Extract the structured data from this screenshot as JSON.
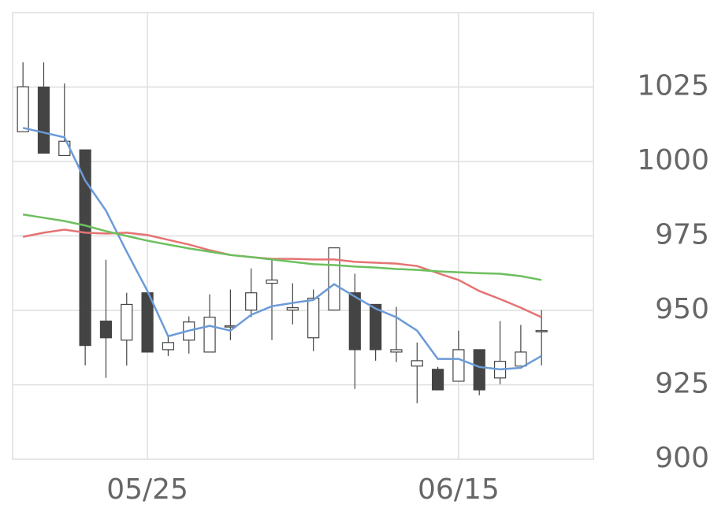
{
  "chart_data": {
    "type": "candlestick",
    "categories": [
      null,
      null,
      null,
      null,
      null,
      null,
      "05/25",
      null,
      null,
      null,
      null,
      null,
      null,
      null,
      null,
      null,
      null,
      null,
      null,
      null,
      null,
      "06/15",
      null,
      null,
      null,
      null
    ],
    "open": [
      1010.0,
      1025.0,
      1002.0,
      1003.9,
      946.4,
      940.0,
      955.9,
      936.8,
      940.0,
      936.0,
      944.5,
      950.1,
      959.1,
      950.1,
      940.8,
      950.1,
      955.9,
      952.0,
      936.0,
      931.3,
      930.2,
      926.2,
      936.8,
      927.3,
      931.3,
      943.2
    ],
    "high": [
      1033.3,
      1033.3,
      1026.2,
      1003.9,
      967.0,
      955.9,
      955.9,
      941.6,
      948.0,
      955.4,
      957.0,
      964.1,
      967.0,
      959.1,
      957.0,
      971.0,
      962.3,
      952.0,
      951.2,
      939.2,
      931.0,
      943.2,
      936.8,
      946.4,
      945.1,
      950.1
    ],
    "low": [
      1010.0,
      1002.8,
      1002.0,
      931.5,
      927.3,
      931.5,
      936.0,
      934.7,
      935.5,
      936.0,
      940.0,
      947.7,
      940.0,
      945.3,
      936.3,
      950.1,
      923.6,
      933.1,
      932.6,
      918.8,
      923.3,
      926.2,
      921.5,
      925.2,
      931.3,
      931.5
    ],
    "close": [
      1025.1,
      1002.8,
      1006.8,
      938.2,
      940.8,
      952.0,
      936.0,
      939.2,
      946.1,
      947.7,
      944.8,
      955.9,
      960.2,
      950.9,
      954.1,
      971.0,
      936.8,
      936.8,
      936.8,
      933.1,
      923.3,
      936.8,
      923.3,
      932.9,
      936.0,
      943.2
    ],
    "up_color": "#ffffff",
    "down_color": "#444444",
    "edge_color": "#444444",
    "lines": [
      {
        "color": "#6b9bd6",
        "values": [
          1011.3,
          1009.7,
          1008.1,
          993.6,
          983.5,
          969.7,
          956.5,
          941.3,
          943.2,
          944.8,
          943.2,
          948.5,
          951.4,
          952.5,
          953.5,
          958.8,
          954.6,
          950.6,
          947.7,
          943.2,
          933.7,
          933.7,
          931.0,
          930.2,
          930.7,
          934.7
        ]
      },
      {
        "color": "#e57373",
        "values": [
          974.7,
          976.1,
          977.1,
          976.1,
          975.8,
          976.1,
          975.3,
          973.7,
          972.1,
          970.2,
          968.6,
          967.9,
          967.3,
          967.3,
          967.1,
          967.1,
          966.3,
          966.0,
          965.7,
          964.9,
          962.5,
          960.2,
          956.5,
          953.8,
          950.9,
          947.7
        ]
      },
      {
        "color": "#6dbf5e",
        "values": [
          982.2,
          981.1,
          980.0,
          978.5,
          976.6,
          975.0,
          973.4,
          972.1,
          970.8,
          969.7,
          968.6,
          967.9,
          967.1,
          966.3,
          965.5,
          965.2,
          964.7,
          964.4,
          963.9,
          963.6,
          963.1,
          962.8,
          962.5,
          962.3,
          961.5,
          960.2
        ]
      }
    ],
    "ylim": [
      900,
      1050
    ],
    "yticks": [
      900,
      925,
      950,
      975,
      1000,
      1025
    ],
    "grid": true
  }
}
